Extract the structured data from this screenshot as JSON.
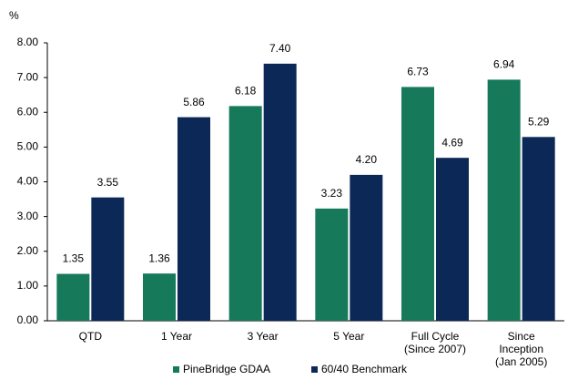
{
  "chart_data": {
    "type": "bar",
    "y_label": "%",
    "categories": [
      "QTD",
      "1 Year",
      "3 Year",
      "5 Year",
      "Full Cycle\n(Since 2007)",
      "Since\nInception\n(Jan 2005)"
    ],
    "series": [
      {
        "name": "PineBridge GDAA",
        "color": "#16795a",
        "values": [
          1.35,
          1.36,
          6.18,
          3.23,
          6.73,
          6.94
        ],
        "value_labels": [
          "1.35",
          "1.36",
          "6.18",
          "3.23",
          "6.73",
          "6.94"
        ]
      },
      {
        "name": "60/40 Benchmark",
        "color": "#0c2856",
        "values": [
          3.55,
          5.86,
          7.4,
          4.2,
          4.69,
          5.29
        ],
        "value_labels": [
          "3.55",
          "5.86",
          "7.40",
          "4.20",
          "4.69",
          "5.29"
        ]
      }
    ],
    "ylim": [
      0,
      8
    ],
    "yticks": [
      {
        "value": 0,
        "label": "0.00"
      },
      {
        "value": 1,
        "label": "1.00"
      },
      {
        "value": 2,
        "label": "2.00"
      },
      {
        "value": 3,
        "label": "3.00"
      },
      {
        "value": 4,
        "label": "4.00"
      },
      {
        "value": 5,
        "label": "5.00"
      },
      {
        "value": 6,
        "label": "6.00"
      },
      {
        "value": 7,
        "label": "7.00"
      },
      {
        "value": 8,
        "label": "8.00"
      }
    ],
    "legend": "bottom"
  }
}
